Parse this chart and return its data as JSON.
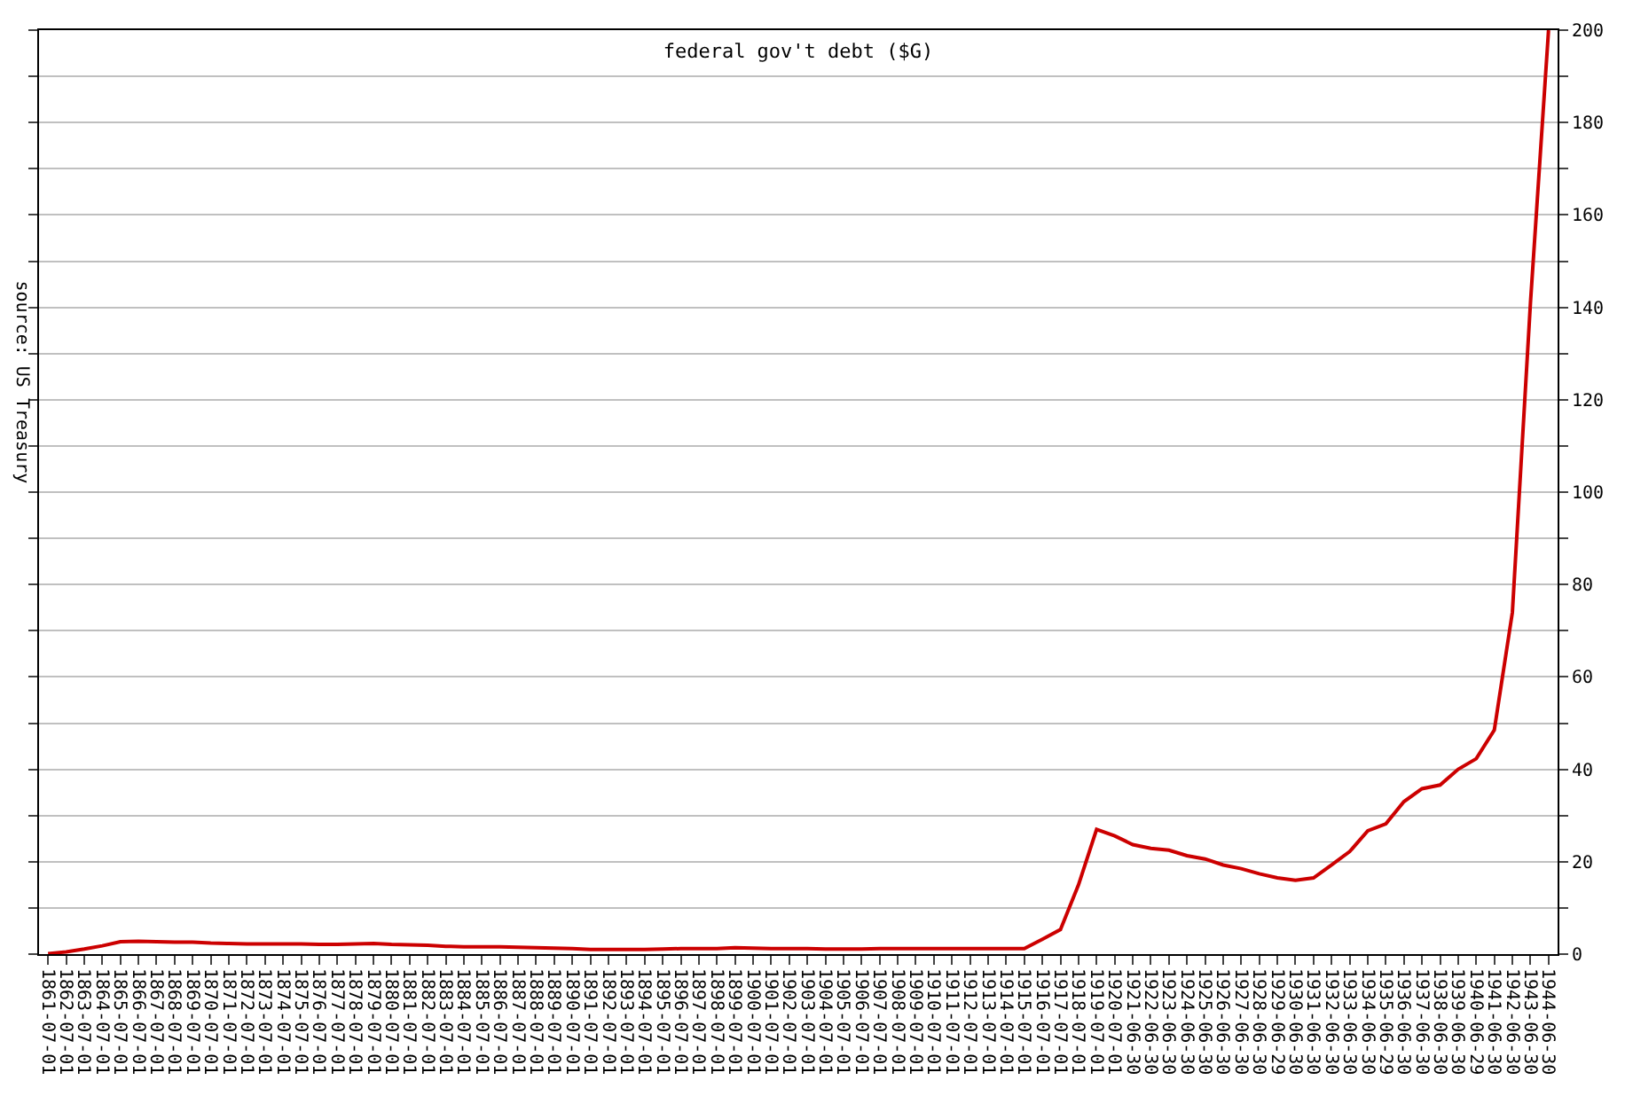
{
  "chart_data": {
    "type": "line",
    "title": "federal gov't debt ($G)",
    "categories": [
      "1861-07-01",
      "1862-07-01",
      "1863-07-01",
      "1864-07-01",
      "1865-07-01",
      "1866-07-01",
      "1867-07-01",
      "1868-07-01",
      "1869-07-01",
      "1870-07-01",
      "1871-07-01",
      "1872-07-01",
      "1873-07-01",
      "1874-07-01",
      "1875-07-01",
      "1876-07-01",
      "1877-07-01",
      "1878-07-01",
      "1879-07-01",
      "1880-07-01",
      "1881-07-01",
      "1882-07-01",
      "1883-07-01",
      "1884-07-01",
      "1885-07-01",
      "1886-07-01",
      "1887-07-01",
      "1888-07-01",
      "1889-07-01",
      "1890-07-01",
      "1891-07-01",
      "1892-07-01",
      "1893-07-01",
      "1894-07-01",
      "1895-07-01",
      "1896-07-01",
      "1897-07-01",
      "1898-07-01",
      "1899-07-01",
      "1900-07-01",
      "1901-07-01",
      "1902-07-01",
      "1903-07-01",
      "1904-07-01",
      "1905-07-01",
      "1906-07-01",
      "1907-07-01",
      "1908-07-01",
      "1909-07-01",
      "1910-07-01",
      "1911-07-01",
      "1912-07-01",
      "1913-07-01",
      "1914-07-01",
      "1915-07-01",
      "1916-07-01",
      "1917-07-01",
      "1918-07-01",
      "1919-07-01",
      "1920-07-01",
      "1921-06-30",
      "1922-06-30",
      "1923-06-30",
      "1924-06-30",
      "1925-06-30",
      "1926-06-30",
      "1927-06-30",
      "1928-06-30",
      "1929-06-29",
      "1930-06-30",
      "1931-06-30",
      "1932-06-30",
      "1933-06-30",
      "1934-06-30",
      "1935-06-29",
      "1936-06-30",
      "1937-06-30",
      "1938-06-30",
      "1939-06-30",
      "1940-06-29",
      "1941-06-30",
      "1942-06-30",
      "1943-06-30",
      "1944-06-30"
    ],
    "series": [
      {
        "color": "#cc0000",
        "values": [
          0.1,
          0.5,
          1.1,
          1.8,
          2.7,
          2.8,
          2.7,
          2.6,
          2.6,
          2.4,
          2.3,
          2.2,
          2.2,
          2.2,
          2.2,
          2.1,
          2.1,
          2.2,
          2.3,
          2.1,
          2.0,
          1.9,
          1.7,
          1.6,
          1.6,
          1.6,
          1.5,
          1.4,
          1.3,
          1.2,
          1.0,
          1.0,
          1.0,
          1.0,
          1.1,
          1.2,
          1.2,
          1.2,
          1.4,
          1.3,
          1.2,
          1.2,
          1.2,
          1.1,
          1.1,
          1.1,
          1.2,
          1.2,
          1.2,
          1.2,
          1.2,
          1.2,
          1.2,
          1.2,
          1.2,
          3.2,
          5.3,
          15,
          27,
          25.6,
          23.7,
          22.9,
          22.5,
          21.3,
          20.6,
          19.3,
          18.5,
          17.4,
          16.5,
          16,
          16.5,
          19.3,
          22.2,
          26.7,
          28.2,
          33,
          35.8,
          36.6,
          40,
          42.3,
          48.5,
          74,
          141,
          200
        ]
      }
    ],
    "ylim": [
      0,
      200
    ],
    "yticks": [
      0,
      {
        "value": 10,
        "label": null
      },
      20,
      {
        "value": 30,
        "label": null
      },
      40,
      {
        "value": 50,
        "label": null
      },
      60,
      {
        "value": 70,
        "label": null
      },
      80,
      {
        "value": 90,
        "label": null
      },
      100,
      {
        "value": 110,
        "label": null
      },
      120,
      {
        "value": 130,
        "label": null
      },
      140,
      {
        "value": 150,
        "label": null
      },
      160,
      {
        "value": 170,
        "label": null
      },
      180,
      {
        "value": 190,
        "label": null
      },
      200
    ],
    "grid": "y",
    "marker": "none",
    "line_style": "solid",
    "annotations": [
      "source: US Treasury"
    ]
  }
}
